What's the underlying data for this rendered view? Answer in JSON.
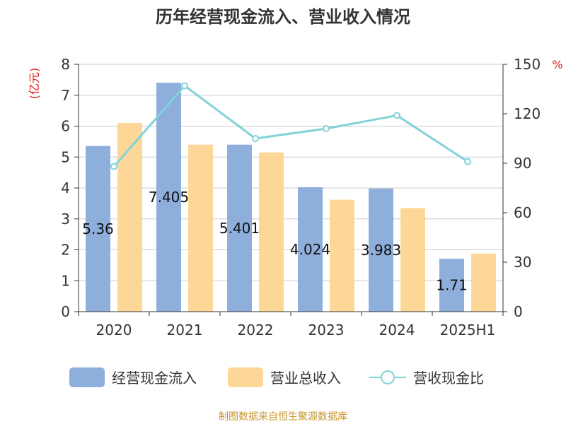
{
  "chart_data": {
    "type": "bar",
    "title": "历年经营现金流入、营业收入情况",
    "categories": [
      "2020",
      "2021",
      "2022",
      "2023",
      "2024",
      "2025H1"
    ],
    "left_axis": {
      "unit": "(亿元)",
      "range": [
        0,
        8
      ],
      "ticks": [
        "0",
        "1",
        "2",
        "3",
        "4",
        "5",
        "6",
        "7",
        "8"
      ]
    },
    "right_axis": {
      "unit": "%",
      "range": [
        0,
        150
      ],
      "ticks": [
        "0",
        "30",
        "60",
        "90",
        "120",
        "150"
      ]
    },
    "series": [
      {
        "name": "经营现金流入",
        "type": "bar",
        "axis": "left",
        "color": "#8eaedc",
        "values": [
          5.36,
          7.405,
          5.401,
          4.024,
          3.983,
          1.71
        ],
        "labels": [
          "5.36",
          "7.405",
          "5.401",
          "4.024",
          "3.983",
          "1.71"
        ]
      },
      {
        "name": "营业总收入",
        "type": "bar",
        "axis": "left",
        "color": "#fdd797",
        "values": [
          6.1,
          5.4,
          5.15,
          3.62,
          3.35,
          1.88
        ]
      },
      {
        "name": "营收现金比",
        "type": "line",
        "axis": "right",
        "color": "#82d3d8",
        "values": [
          88,
          137,
          105,
          111,
          119,
          91
        ]
      }
    ],
    "grid": true,
    "legend_position": "bottom"
  },
  "source": "制图数据来自恒生聚源数据库"
}
